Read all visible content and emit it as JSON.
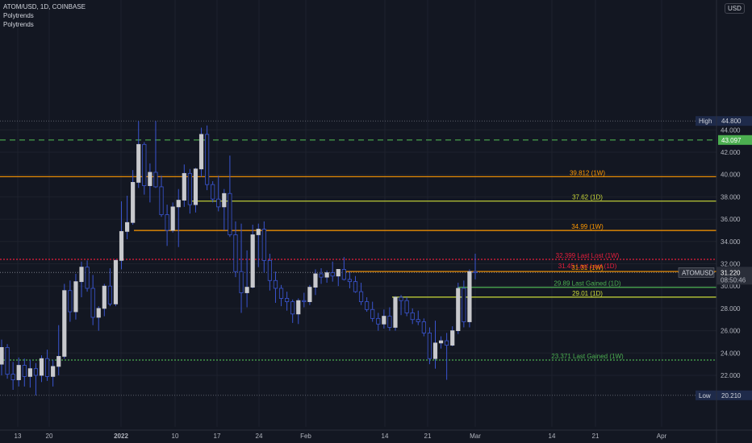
{
  "header": {
    "symbol_line": "ATOM/USD, 1D, COINBASE",
    "indicator_1": "Polytrends",
    "indicator_2": "Polytrends"
  },
  "price_axis": {
    "currency": "USD",
    "ticks": [
      "22.000",
      "24.000",
      "26.000",
      "28.000",
      "30.000",
      "32.000",
      "34.000",
      "36.000",
      "38.000",
      "40.000",
      "42.000",
      "44.000"
    ],
    "high_label": "High",
    "high_value": "44.800",
    "low_label": "Low",
    "low_value": "20.210",
    "current_symbol": "ATOMUSD",
    "current_price": "31.220",
    "countdown": "08:50:46",
    "marker_value": "43.097"
  },
  "time_axis": [
    "13",
    "20",
    "2022",
    "10",
    "17",
    "24",
    "Feb",
    "14",
    "21",
    "Mar",
    "14",
    "21",
    "Apr"
  ],
  "levels": [
    {
      "price": 39.812,
      "label": "39.812 (1W)",
      "color": "#ff9800",
      "style": "solid"
    },
    {
      "price": 37.62,
      "label": "37.62 (1D)",
      "color": "#cddc39",
      "style": "solid"
    },
    {
      "price": 34.99,
      "label": "34.99 (1W)",
      "color": "#ff9800",
      "style": "solid"
    },
    {
      "price": 32.399,
      "label": "32.399 Last Lost (1W)",
      "color": "#e91e3c",
      "style": "dotted"
    },
    {
      "price": 31.45,
      "label": "31.45 Last Lost (1D)",
      "color": "#e91e3c",
      "style": "none"
    },
    {
      "price": 31.31,
      "label": "31.31 (1W)",
      "color": "#ff9800",
      "style": "solid"
    },
    {
      "price": 29.89,
      "label": "29.89 Last Gained (1D)",
      "color": "#4caf50",
      "style": "solid"
    },
    {
      "price": 29.01,
      "label": "29.01 (1D)",
      "color": "#cddc39",
      "style": "solid"
    },
    {
      "price": 23.371,
      "label": "23.371 Last Gained (1W)",
      "color": "#4caf50",
      "style": "dotted"
    },
    {
      "price": 43.097,
      "label": "",
      "color": "#4caf50",
      "style": "dashed"
    }
  ],
  "colors": {
    "background": "#131722",
    "up_candle": "#c8c9cd",
    "down_candle": "#131722",
    "wick": "#3a55d0",
    "grid": "#1e222d",
    "axis_text": "#b2b5be"
  },
  "chart_data": {
    "type": "candlestick",
    "title": "ATOM/USD, 1D, COINBASE",
    "ylim": [
      19.3,
      46.0
    ],
    "x_tick_labels": [
      "13",
      "20",
      "2022",
      "10",
      "17",
      "24",
      "Feb",
      "14",
      "21",
      "Mar",
      "14",
      "21",
      "Apr"
    ],
    "candles": [
      {
        "o": 23.0,
        "h": 25.2,
        "l": 22.0,
        "c": 24.5
      },
      {
        "o": 24.5,
        "h": 24.8,
        "l": 21.7,
        "c": 22.1
      },
      {
        "o": 22.1,
        "h": 23.2,
        "l": 20.7,
        "c": 21.6
      },
      {
        "o": 21.6,
        "h": 23.6,
        "l": 21.0,
        "c": 22.9
      },
      {
        "o": 22.9,
        "h": 23.5,
        "l": 21.0,
        "c": 21.9
      },
      {
        "o": 21.9,
        "h": 23.4,
        "l": 20.9,
        "c": 22.6
      },
      {
        "o": 22.6,
        "h": 23.1,
        "l": 20.2,
        "c": 22.0
      },
      {
        "o": 22.0,
        "h": 23.8,
        "l": 21.4,
        "c": 23.5
      },
      {
        "o": 23.5,
        "h": 24.3,
        "l": 21.5,
        "c": 21.9
      },
      {
        "o": 21.9,
        "h": 23.4,
        "l": 21.0,
        "c": 22.8
      },
      {
        "o": 22.8,
        "h": 26.5,
        "l": 22.0,
        "c": 23.7
      },
      {
        "o": 23.7,
        "h": 30.2,
        "l": 23.5,
        "c": 29.6
      },
      {
        "o": 29.6,
        "h": 30.5,
        "l": 26.8,
        "c": 27.7
      },
      {
        "o": 27.7,
        "h": 31.1,
        "l": 27.0,
        "c": 30.4
      },
      {
        "o": 30.4,
        "h": 32.2,
        "l": 29.0,
        "c": 31.7
      },
      {
        "o": 31.7,
        "h": 32.3,
        "l": 29.5,
        "c": 29.8
      },
      {
        "o": 29.8,
        "h": 31.0,
        "l": 26.5,
        "c": 27.2
      },
      {
        "o": 27.2,
        "h": 28.2,
        "l": 26.0,
        "c": 28.0
      },
      {
        "o": 28.0,
        "h": 30.2,
        "l": 27.3,
        "c": 30.0
      },
      {
        "o": 30.0,
        "h": 31.6,
        "l": 28.2,
        "c": 28.4
      },
      {
        "o": 28.4,
        "h": 32.4,
        "l": 28.2,
        "c": 32.3
      },
      {
        "o": 32.3,
        "h": 37.6,
        "l": 31.5,
        "c": 34.9
      },
      {
        "o": 34.9,
        "h": 38.1,
        "l": 34.2,
        "c": 35.7
      },
      {
        "o": 35.7,
        "h": 40.4,
        "l": 35.5,
        "c": 39.3
      },
      {
        "o": 39.3,
        "h": 44.8,
        "l": 38.8,
        "c": 42.7
      },
      {
        "o": 42.7,
        "h": 42.9,
        "l": 38.2,
        "c": 39.0
      },
      {
        "o": 39.0,
        "h": 41.0,
        "l": 37.5,
        "c": 40.2
      },
      {
        "o": 40.2,
        "h": 44.8,
        "l": 38.8,
        "c": 38.9
      },
      {
        "o": 38.9,
        "h": 39.9,
        "l": 36.2,
        "c": 36.4
      },
      {
        "o": 36.4,
        "h": 37.3,
        "l": 33.6,
        "c": 35.0
      },
      {
        "o": 35.0,
        "h": 37.5,
        "l": 34.8,
        "c": 37.1
      },
      {
        "o": 37.1,
        "h": 38.7,
        "l": 33.5,
        "c": 37.7
      },
      {
        "o": 37.7,
        "h": 40.9,
        "l": 37.1,
        "c": 40.1
      },
      {
        "o": 40.1,
        "h": 40.5,
        "l": 36.5,
        "c": 37.3
      },
      {
        "o": 37.3,
        "h": 40.6,
        "l": 36.6,
        "c": 40.5
      },
      {
        "o": 40.5,
        "h": 44.2,
        "l": 39.8,
        "c": 43.6
      },
      {
        "o": 43.6,
        "h": 44.4,
        "l": 38.6,
        "c": 39.1
      },
      {
        "o": 39.1,
        "h": 39.4,
        "l": 37.5,
        "c": 37.8
      },
      {
        "o": 37.8,
        "h": 39.9,
        "l": 36.7,
        "c": 37.1
      },
      {
        "o": 37.1,
        "h": 38.7,
        "l": 35.0,
        "c": 38.3
      },
      {
        "o": 38.3,
        "h": 41.7,
        "l": 34.4,
        "c": 34.6
      },
      {
        "o": 34.6,
        "h": 35.8,
        "l": 30.8,
        "c": 31.3
      },
      {
        "o": 31.3,
        "h": 35.6,
        "l": 27.6,
        "c": 29.4
      },
      {
        "o": 29.4,
        "h": 33.2,
        "l": 28.1,
        "c": 29.9
      },
      {
        "o": 29.9,
        "h": 35.5,
        "l": 29.8,
        "c": 34.6
      },
      {
        "o": 34.6,
        "h": 35.6,
        "l": 31.7,
        "c": 35.1
      },
      {
        "o": 35.1,
        "h": 35.8,
        "l": 31.2,
        "c": 32.3
      },
      {
        "o": 32.3,
        "h": 32.9,
        "l": 29.6,
        "c": 30.5
      },
      {
        "o": 30.5,
        "h": 31.3,
        "l": 28.5,
        "c": 29.8
      },
      {
        "o": 29.8,
        "h": 30.1,
        "l": 28.2,
        "c": 28.9
      },
      {
        "o": 28.9,
        "h": 29.5,
        "l": 27.8,
        "c": 28.6
      },
      {
        "o": 28.6,
        "h": 28.8,
        "l": 26.7,
        "c": 27.5
      },
      {
        "o": 27.5,
        "h": 28.9,
        "l": 26.6,
        "c": 28.7
      },
      {
        "o": 28.7,
        "h": 29.4,
        "l": 28.1,
        "c": 28.6
      },
      {
        "o": 28.6,
        "h": 30.1,
        "l": 28.3,
        "c": 29.9
      },
      {
        "o": 29.9,
        "h": 31.5,
        "l": 29.2,
        "c": 31.1
      },
      {
        "o": 31.1,
        "h": 31.6,
        "l": 30.2,
        "c": 30.8
      },
      {
        "o": 30.8,
        "h": 31.4,
        "l": 30.3,
        "c": 31.2
      },
      {
        "o": 31.2,
        "h": 32.2,
        "l": 30.4,
        "c": 30.9
      },
      {
        "o": 30.9,
        "h": 31.5,
        "l": 30.0,
        "c": 31.5
      },
      {
        "o": 31.5,
        "h": 32.6,
        "l": 30.5,
        "c": 30.6
      },
      {
        "o": 30.6,
        "h": 31.3,
        "l": 29.8,
        "c": 30.4
      },
      {
        "o": 30.4,
        "h": 30.9,
        "l": 29.4,
        "c": 29.5
      },
      {
        "o": 29.5,
        "h": 30.3,
        "l": 28.3,
        "c": 28.6
      },
      {
        "o": 28.6,
        "h": 29.0,
        "l": 27.7,
        "c": 27.9
      },
      {
        "o": 27.9,
        "h": 28.6,
        "l": 26.8,
        "c": 27.1
      },
      {
        "o": 27.1,
        "h": 27.6,
        "l": 26.0,
        "c": 26.6
      },
      {
        "o": 26.6,
        "h": 27.9,
        "l": 26.2,
        "c": 27.3
      },
      {
        "o": 27.3,
        "h": 28.1,
        "l": 26.0,
        "c": 26.3
      },
      {
        "o": 26.3,
        "h": 29.1,
        "l": 26.0,
        "c": 29.0
      },
      {
        "o": 29.0,
        "h": 29.2,
        "l": 27.4,
        "c": 28.7
      },
      {
        "o": 28.7,
        "h": 29.0,
        "l": 27.3,
        "c": 27.6
      },
      {
        "o": 27.6,
        "h": 28.0,
        "l": 26.6,
        "c": 27.0
      },
      {
        "o": 27.0,
        "h": 27.8,
        "l": 26.5,
        "c": 26.8
      },
      {
        "o": 26.8,
        "h": 27.1,
        "l": 25.5,
        "c": 25.8
      },
      {
        "o": 25.8,
        "h": 26.3,
        "l": 23.0,
        "c": 23.5
      },
      {
        "o": 23.5,
        "h": 26.9,
        "l": 22.6,
        "c": 24.9
      },
      {
        "o": 24.9,
        "h": 25.5,
        "l": 24.4,
        "c": 25.1
      },
      {
        "o": 25.1,
        "h": 25.8,
        "l": 21.6,
        "c": 24.7
      },
      {
        "o": 24.7,
        "h": 26.4,
        "l": 24.6,
        "c": 26.0
      },
      {
        "o": 26.0,
        "h": 30.3,
        "l": 25.7,
        "c": 29.8
      },
      {
        "o": 29.8,
        "h": 30.5,
        "l": 26.3,
        "c": 26.8
      },
      {
        "o": 26.8,
        "h": 31.5,
        "l": 26.3,
        "c": 31.3
      },
      {
        "o": 31.3,
        "h": 32.9,
        "l": 30.6,
        "c": 31.2
      }
    ]
  }
}
